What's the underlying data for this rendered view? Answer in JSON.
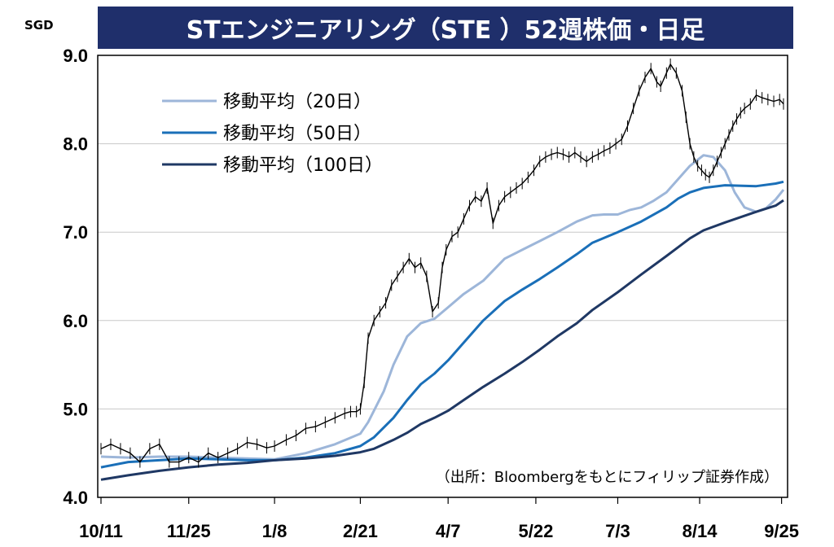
{
  "header": {
    "title": "STエンジニアリング（STE ）52週株価・日足",
    "unit": "SGD"
  },
  "source_note": "（出所：Bloombergをもとにフィリップ証券作成）",
  "chart_data": {
    "type": "line",
    "title": "STエンジニアリング（STE ）52週株価・日足",
    "ylabel": "SGD",
    "ylim": [
      4.0,
      9.0
    ],
    "yticks": [
      "4.0",
      "5.0",
      "6.0",
      "7.0",
      "8.0",
      "9.0"
    ],
    "yticks_values": [
      4.0,
      5.0,
      6.0,
      7.0,
      8.0,
      9.0
    ],
    "x_range_days": [
      0,
      350
    ],
    "xticks": [
      {
        "label": "10/11",
        "day": 0
      },
      {
        "label": "11/25",
        "day": 45
      },
      {
        "label": "1/8",
        "day": 89
      },
      {
        "label": "2/21",
        "day": 133
      },
      {
        "label": "4/7",
        "day": 178
      },
      {
        "label": "5/22",
        "day": 223
      },
      {
        "label": "7/3",
        "day": 265
      },
      {
        "label": "8/14",
        "day": 307
      },
      {
        "label": "9/25",
        "day": 349
      }
    ],
    "legend": [
      "移動平均（20日）",
      "移動平均（50日）",
      "移動平均（100日）"
    ],
    "legend_position": "top-left",
    "grid": true,
    "colors": {
      "price": "#000000",
      "ma20": "#9db6d9",
      "ma50": "#1a6fb8",
      "ma100": "#1f3864",
      "title_bg": "#1f2f6b"
    },
    "series": [
      {
        "name": "移動平均（20日）",
        "x": [
          0,
          14,
          30,
          45,
          60,
          75,
          89,
          105,
          120,
          133,
          137,
          145,
          150,
          157,
          164,
          171,
          178,
          186,
          196,
          207,
          216,
          225,
          234,
          244,
          252,
          258,
          265,
          271,
          277,
          283,
          290,
          296,
          302,
          309,
          314,
          320,
          325,
          330,
          336,
          341,
          346,
          350
        ],
        "y": [
          4.46,
          4.45,
          4.46,
          4.46,
          4.45,
          4.44,
          4.43,
          4.5,
          4.6,
          4.72,
          4.85,
          5.2,
          5.5,
          5.82,
          5.97,
          6.02,
          6.15,
          6.3,
          6.45,
          6.7,
          6.8,
          6.9,
          7.0,
          7.12,
          7.19,
          7.2,
          7.2,
          7.25,
          7.28,
          7.35,
          7.45,
          7.6,
          7.75,
          7.87,
          7.85,
          7.7,
          7.45,
          7.28,
          7.23,
          7.27,
          7.37,
          7.48
        ]
      },
      {
        "name": "移動平均（50日）",
        "x": [
          0,
          14,
          30,
          45,
          60,
          75,
          89,
          105,
          120,
          133,
          140,
          150,
          157,
          164,
          171,
          178,
          186,
          196,
          207,
          216,
          225,
          234,
          244,
          252,
          265,
          277,
          290,
          296,
          302,
          309,
          320,
          336,
          346,
          350
        ],
        "y": [
          4.34,
          4.4,
          4.42,
          4.44,
          4.43,
          4.42,
          4.42,
          4.45,
          4.5,
          4.58,
          4.68,
          4.9,
          5.1,
          5.28,
          5.4,
          5.55,
          5.75,
          6.0,
          6.22,
          6.35,
          6.47,
          6.6,
          6.75,
          6.88,
          7.0,
          7.12,
          7.28,
          7.38,
          7.45,
          7.5,
          7.53,
          7.52,
          7.55,
          7.57
        ]
      },
      {
        "name": "移動平均（100日）",
        "x": [
          0,
          14,
          30,
          45,
          60,
          75,
          89,
          105,
          120,
          133,
          140,
          150,
          157,
          164,
          171,
          178,
          186,
          196,
          207,
          216,
          225,
          234,
          244,
          252,
          265,
          277,
          290,
          296,
          302,
          309,
          320,
          336,
          346,
          350
        ],
        "y": [
          4.2,
          4.25,
          4.3,
          4.34,
          4.37,
          4.39,
          4.42,
          4.44,
          4.47,
          4.51,
          4.55,
          4.65,
          4.73,
          4.83,
          4.9,
          4.98,
          5.1,
          5.25,
          5.4,
          5.53,
          5.67,
          5.82,
          5.97,
          6.12,
          6.32,
          6.52,
          6.73,
          6.83,
          6.93,
          7.02,
          7.11,
          7.23,
          7.3,
          7.36
        ]
      },
      {
        "name": "",
        "style": "daily-candles",
        "x": [
          0,
          5,
          10,
          15,
          20,
          25,
          30,
          35,
          40,
          45,
          50,
          55,
          60,
          65,
          70,
          75,
          80,
          85,
          89,
          95,
          100,
          105,
          110,
          115,
          120,
          125,
          128,
          131,
          133,
          135,
          137,
          140,
          143,
          146,
          149,
          152,
          155,
          158,
          161,
          164,
          167,
          170,
          173,
          175,
          177,
          180,
          183,
          186,
          189,
          192,
          195,
          198,
          201,
          204,
          207,
          210,
          213,
          216,
          219,
          222,
          225,
          228,
          231,
          234,
          237,
          240,
          243,
          246,
          249,
          252,
          255,
          258,
          261,
          264,
          267,
          270,
          273,
          276,
          279,
          282,
          285,
          287,
          290,
          292,
          295,
          298,
          300,
          302,
          304,
          306,
          308,
          310,
          312,
          314,
          316,
          318,
          320,
          322,
          324,
          326,
          328,
          330,
          333,
          336,
          339,
          342,
          345,
          348,
          350
        ],
        "y": [
          4.55,
          4.6,
          4.55,
          4.5,
          4.4,
          4.55,
          4.6,
          4.4,
          4.4,
          4.45,
          4.4,
          4.5,
          4.45,
          4.5,
          4.55,
          4.62,
          4.6,
          4.56,
          4.58,
          4.65,
          4.7,
          4.78,
          4.8,
          4.85,
          4.9,
          4.95,
          4.97,
          4.97,
          5.0,
          5.3,
          5.8,
          6.0,
          6.1,
          6.2,
          6.4,
          6.5,
          6.6,
          6.7,
          6.6,
          6.65,
          6.5,
          6.1,
          6.2,
          6.6,
          6.8,
          6.95,
          7.0,
          7.15,
          7.3,
          7.4,
          7.35,
          7.5,
          7.1,
          7.3,
          7.4,
          7.45,
          7.5,
          7.55,
          7.62,
          7.7,
          7.8,
          7.85,
          7.88,
          7.9,
          7.88,
          7.85,
          7.9,
          7.85,
          7.8,
          7.85,
          7.88,
          7.92,
          7.95,
          8.0,
          8.05,
          8.2,
          8.4,
          8.6,
          8.75,
          8.85,
          8.7,
          8.65,
          8.8,
          8.9,
          8.8,
          8.6,
          8.3,
          8.0,
          7.85,
          7.75,
          7.7,
          7.65,
          7.62,
          7.7,
          7.8,
          7.9,
          8.0,
          8.1,
          8.2,
          8.28,
          8.35,
          8.4,
          8.45,
          8.55,
          8.52,
          8.5,
          8.48,
          8.5,
          8.45
        ]
      }
    ]
  }
}
